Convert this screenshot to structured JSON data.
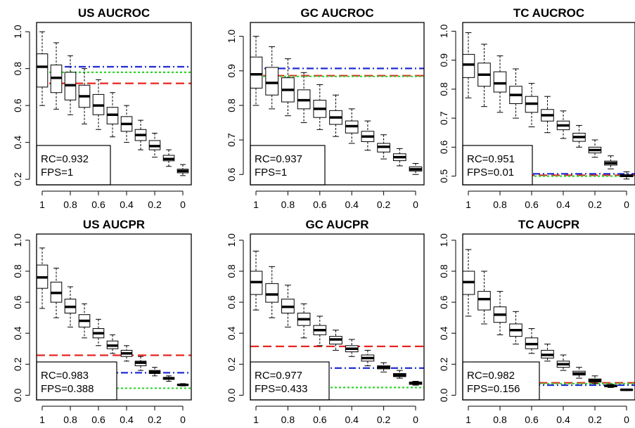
{
  "figure": {
    "description_colors": {
      "ref_red": "#e8251f",
      "ref_blue": "#1f2bd6",
      "ref_green": "#2bd62b"
    }
  },
  "chart_data": [
    {
      "type": "box",
      "title": "US AUCROC",
      "x_ticks": [
        "1",
        "0.8",
        "0.6",
        "0.4",
        "0.2",
        "0"
      ],
      "x_levels": [
        1,
        0.9,
        0.8,
        0.7,
        0.6,
        0.5,
        0.4,
        0.3,
        0.2,
        0.1,
        0
      ],
      "ylim": [
        0.17,
        1.05
      ],
      "y_ticks": [
        0.2,
        0.4,
        0.6,
        0.8,
        1.0
      ],
      "y_tick_labels": [
        "0.2",
        "0.4",
        "0.6",
        "0.8",
        "1.0"
      ],
      "boxes": [
        {
          "wlo": 0.6,
          "q1": 0.7,
          "med": 0.81,
          "q3": 0.88,
          "whi": 1.0
        },
        {
          "wlo": 0.58,
          "q1": 0.67,
          "med": 0.75,
          "q3": 0.82,
          "whi": 0.94
        },
        {
          "wlo": 0.55,
          "q1": 0.63,
          "med": 0.71,
          "q3": 0.78,
          "whi": 0.87
        },
        {
          "wlo": 0.5,
          "q1": 0.59,
          "med": 0.65,
          "q3": 0.71,
          "whi": 0.8
        },
        {
          "wlo": 0.47,
          "q1": 0.55,
          "med": 0.6,
          "q3": 0.66,
          "whi": 0.74
        },
        {
          "wlo": 0.43,
          "q1": 0.5,
          "med": 0.55,
          "q3": 0.59,
          "whi": 0.67
        },
        {
          "wlo": 0.4,
          "q1": 0.46,
          "med": 0.5,
          "q3": 0.54,
          "whi": 0.6
        },
        {
          "wlo": 0.36,
          "q1": 0.41,
          "med": 0.44,
          "q3": 0.47,
          "whi": 0.52
        },
        {
          "wlo": 0.32,
          "q1": 0.36,
          "med": 0.38,
          "q3": 0.41,
          "whi": 0.45
        },
        {
          "wlo": 0.27,
          "q1": 0.3,
          "med": 0.31,
          "q3": 0.33,
          "whi": 0.36
        },
        {
          "wlo": 0.22,
          "q1": 0.235,
          "med": 0.245,
          "q3": 0.255,
          "whi": 0.28
        }
      ],
      "ref_lines": [
        {
          "color": "red",
          "style": "dashed",
          "y": 0.72
        },
        {
          "color": "blue",
          "style": "dashdot",
          "y": 0.81
        },
        {
          "color": "green",
          "style": "dotted",
          "y": 0.78
        }
      ],
      "annotation": [
        "RC=0.932",
        "FPS=1"
      ]
    },
    {
      "type": "box",
      "title": "GC AUCROC",
      "x_ticks": [
        "1",
        "0.8",
        "0.6",
        "0.4",
        "0.2",
        "0"
      ],
      "x_levels": [
        1,
        0.9,
        0.8,
        0.7,
        0.6,
        0.5,
        0.4,
        0.3,
        0.2,
        0.1,
        0
      ],
      "ylim": [
        0.57,
        1.04
      ],
      "y_ticks": [
        0.6,
        0.7,
        0.8,
        0.9,
        1.0
      ],
      "y_tick_labels": [
        "0.6",
        "0.7",
        "0.8",
        "0.9",
        "1.0"
      ],
      "boxes": [
        {
          "wlo": 0.8,
          "q1": 0.85,
          "med": 0.89,
          "q3": 0.94,
          "whi": 1.0
        },
        {
          "wlo": 0.79,
          "q1": 0.83,
          "med": 0.865,
          "q3": 0.91,
          "whi": 0.97
        },
        {
          "wlo": 0.77,
          "q1": 0.81,
          "med": 0.845,
          "q3": 0.88,
          "whi": 0.935
        },
        {
          "wlo": 0.75,
          "q1": 0.79,
          "med": 0.815,
          "q3": 0.845,
          "whi": 0.895
        },
        {
          "wlo": 0.73,
          "q1": 0.765,
          "med": 0.79,
          "q3": 0.815,
          "whi": 0.86
        },
        {
          "wlo": 0.71,
          "q1": 0.745,
          "med": 0.765,
          "q3": 0.785,
          "whi": 0.83
        },
        {
          "wlo": 0.69,
          "q1": 0.72,
          "med": 0.74,
          "q3": 0.755,
          "whi": 0.79
        },
        {
          "wlo": 0.67,
          "q1": 0.695,
          "med": 0.71,
          "q3": 0.725,
          "whi": 0.755
        },
        {
          "wlo": 0.645,
          "q1": 0.665,
          "med": 0.68,
          "q3": 0.69,
          "whi": 0.715
        },
        {
          "wlo": 0.625,
          "q1": 0.64,
          "med": 0.65,
          "q3": 0.66,
          "whi": 0.675
        },
        {
          "wlo": 0.6,
          "q1": 0.61,
          "med": 0.615,
          "q3": 0.622,
          "whi": 0.632
        }
      ],
      "ref_lines": [
        {
          "color": "red",
          "style": "dashed",
          "y": 0.886
        },
        {
          "color": "blue",
          "style": "dashdot",
          "y": 0.907
        },
        {
          "color": "green",
          "style": "dotted",
          "y": 0.884
        }
      ],
      "annotation": [
        "RC=0.937",
        "FPS=1"
      ]
    },
    {
      "type": "box",
      "title": "TC AUCROC",
      "x_ticks": [
        "1",
        "0.8",
        "0.6",
        "0.4",
        "0.2",
        "0"
      ],
      "x_levels": [
        1,
        0.9,
        0.8,
        0.7,
        0.6,
        0.5,
        0.4,
        0.3,
        0.2,
        0.1,
        0
      ],
      "ylim": [
        0.47,
        1.03
      ],
      "y_ticks": [
        0.5,
        0.6,
        0.7,
        0.8,
        0.9,
        1.0
      ],
      "y_tick_labels": [
        "0.5",
        "0.6",
        "0.7",
        "0.8",
        "0.9",
        "1.0"
      ],
      "boxes": [
        {
          "wlo": 0.77,
          "q1": 0.84,
          "med": 0.885,
          "q3": 0.92,
          "whi": 0.995
        },
        {
          "wlo": 0.74,
          "q1": 0.81,
          "med": 0.85,
          "q3": 0.89,
          "whi": 0.955
        },
        {
          "wlo": 0.72,
          "q1": 0.79,
          "med": 0.82,
          "q3": 0.86,
          "whi": 0.915
        },
        {
          "wlo": 0.7,
          "q1": 0.75,
          "med": 0.78,
          "q3": 0.81,
          "whi": 0.87
        },
        {
          "wlo": 0.67,
          "q1": 0.72,
          "med": 0.75,
          "q3": 0.775,
          "whi": 0.82
        },
        {
          "wlo": 0.65,
          "q1": 0.69,
          "med": 0.71,
          "q3": 0.73,
          "whi": 0.775
        },
        {
          "wlo": 0.63,
          "q1": 0.66,
          "med": 0.675,
          "q3": 0.69,
          "whi": 0.725
        },
        {
          "wlo": 0.6,
          "q1": 0.62,
          "med": 0.635,
          "q3": 0.648,
          "whi": 0.675
        },
        {
          "wlo": 0.565,
          "q1": 0.58,
          "med": 0.59,
          "q3": 0.6,
          "whi": 0.625
        },
        {
          "wlo": 0.525,
          "q1": 0.538,
          "med": 0.545,
          "q3": 0.552,
          "whi": 0.57
        },
        {
          "wlo": 0.49,
          "q1": 0.498,
          "med": 0.502,
          "q3": 0.505,
          "whi": 0.515
        }
      ],
      "ref_lines": [
        {
          "color": "red",
          "style": "dashed",
          "y": 0.503
        },
        {
          "color": "blue",
          "style": "dashdot",
          "y": 0.508
        },
        {
          "color": "green",
          "style": "dotted",
          "y": 0.5
        }
      ],
      "annotation": [
        "RC=0.951",
        "FPS=0.01"
      ]
    },
    {
      "type": "box",
      "title": "US AUCPR",
      "x_ticks": [
        "1",
        "0.8",
        "0.6",
        "0.4",
        "0.2",
        "0"
      ],
      "x_levels": [
        1,
        0.9,
        0.8,
        0.7,
        0.6,
        0.5,
        0.4,
        0.3,
        0.2,
        0.1,
        0
      ],
      "ylim": [
        -0.03,
        1.04
      ],
      "y_ticks": [
        0.0,
        0.2,
        0.4,
        0.6,
        0.8,
        1.0
      ],
      "y_tick_labels": [
        "0.0",
        "0.2",
        "0.4",
        "0.6",
        "0.8",
        "1.0"
      ],
      "boxes": [
        {
          "wlo": 0.56,
          "q1": 0.69,
          "med": 0.76,
          "q3": 0.84,
          "whi": 0.95
        },
        {
          "wlo": 0.5,
          "q1": 0.6,
          "med": 0.66,
          "q3": 0.73,
          "whi": 0.82
        },
        {
          "wlo": 0.44,
          "q1": 0.53,
          "med": 0.57,
          "q3": 0.62,
          "whi": 0.7
        },
        {
          "wlo": 0.37,
          "q1": 0.44,
          "med": 0.48,
          "q3": 0.52,
          "whi": 0.59
        },
        {
          "wlo": 0.32,
          "q1": 0.37,
          "med": 0.4,
          "q3": 0.43,
          "whi": 0.49
        },
        {
          "wlo": 0.27,
          "q1": 0.3,
          "med": 0.32,
          "q3": 0.35,
          "whi": 0.39
        },
        {
          "wlo": 0.22,
          "q1": 0.25,
          "med": 0.27,
          "q3": 0.29,
          "whi": 0.32
        },
        {
          "wlo": 0.16,
          "q1": 0.19,
          "med": 0.21,
          "q3": 0.22,
          "whi": 0.25
        },
        {
          "wlo": 0.125,
          "q1": 0.14,
          "med": 0.15,
          "q3": 0.16,
          "whi": 0.18
        },
        {
          "wlo": 0.09,
          "q1": 0.102,
          "med": 0.11,
          "q3": 0.115,
          "whi": 0.125
        },
        {
          "wlo": 0.06,
          "q1": 0.064,
          "med": 0.067,
          "q3": 0.07,
          "whi": 0.075
        }
      ],
      "ref_lines": [
        {
          "color": "red",
          "style": "dashed",
          "y": 0.258
        },
        {
          "color": "blue",
          "style": "dashdot",
          "y": 0.145
        },
        {
          "color": "green",
          "style": "dotted",
          "y": 0.045
        }
      ],
      "annotation": [
        "RC=0.983",
        "FPS=0.388"
      ]
    },
    {
      "type": "box",
      "title": "GC AUCPR",
      "x_ticks": [
        "1",
        "0.8",
        "0.6",
        "0.4",
        "0.2",
        "0"
      ],
      "x_levels": [
        1,
        0.9,
        0.8,
        0.7,
        0.6,
        0.5,
        0.4,
        0.3,
        0.2,
        0.1,
        0
      ],
      "ylim": [
        -0.03,
        1.04
      ],
      "y_ticks": [
        0.0,
        0.2,
        0.4,
        0.6,
        0.8,
        1.0
      ],
      "y_tick_labels": [
        "0.0",
        "0.2",
        "0.4",
        "0.6",
        "0.8",
        "1.0"
      ],
      "boxes": [
        {
          "wlo": 0.55,
          "q1": 0.65,
          "med": 0.73,
          "q3": 0.8,
          "whi": 0.93
        },
        {
          "wlo": 0.5,
          "q1": 0.6,
          "med": 0.65,
          "q3": 0.72,
          "whi": 0.83
        },
        {
          "wlo": 0.44,
          "q1": 0.53,
          "med": 0.57,
          "q3": 0.62,
          "whi": 0.71
        },
        {
          "wlo": 0.37,
          "q1": 0.45,
          "med": 0.49,
          "q3": 0.53,
          "whi": 0.59
        },
        {
          "wlo": 0.32,
          "q1": 0.39,
          "med": 0.42,
          "q3": 0.45,
          "whi": 0.51
        },
        {
          "wlo": 0.29,
          "q1": 0.33,
          "med": 0.36,
          "q3": 0.38,
          "whi": 0.42
        },
        {
          "wlo": 0.25,
          "q1": 0.28,
          "med": 0.3,
          "q3": 0.32,
          "whi": 0.36
        },
        {
          "wlo": 0.19,
          "q1": 0.22,
          "med": 0.24,
          "q3": 0.26,
          "whi": 0.29
        },
        {
          "wlo": 0.15,
          "q1": 0.17,
          "med": 0.18,
          "q3": 0.19,
          "whi": 0.21
        },
        {
          "wlo": 0.11,
          "q1": 0.12,
          "med": 0.13,
          "q3": 0.14,
          "whi": 0.16
        },
        {
          "wlo": 0.065,
          "q1": 0.07,
          "med": 0.08,
          "q3": 0.085,
          "whi": 0.09
        }
      ],
      "ref_lines": [
        {
          "color": "red",
          "style": "dashed",
          "y": 0.315
        },
        {
          "color": "blue",
          "style": "dashdot",
          "y": 0.175
        },
        {
          "color": "green",
          "style": "dotted",
          "y": 0.05
        }
      ],
      "annotation": [
        "RC=0.977",
        "FPS=0.433"
      ]
    },
    {
      "type": "box",
      "title": "TC AUCPR",
      "x_ticks": [
        "1",
        "0.8",
        "0.6",
        "0.4",
        "0.2",
        "0"
      ],
      "x_levels": [
        1,
        0.9,
        0.8,
        0.7,
        0.6,
        0.5,
        0.4,
        0.3,
        0.2,
        0.1,
        0
      ],
      "ylim": [
        -0.03,
        1.04
      ],
      "y_ticks": [
        0.0,
        0.2,
        0.4,
        0.6,
        0.8,
        1.0
      ],
      "y_tick_labels": [
        "0.0",
        "0.2",
        "0.4",
        "0.6",
        "0.8",
        "1.0"
      ],
      "boxes": [
        {
          "wlo": 0.51,
          "q1": 0.65,
          "med": 0.73,
          "q3": 0.8,
          "whi": 0.94
        },
        {
          "wlo": 0.46,
          "q1": 0.55,
          "med": 0.62,
          "q3": 0.67,
          "whi": 0.8
        },
        {
          "wlo": 0.39,
          "q1": 0.47,
          "med": 0.52,
          "q3": 0.57,
          "whi": 0.67
        },
        {
          "wlo": 0.33,
          "q1": 0.38,
          "med": 0.42,
          "q3": 0.46,
          "whi": 0.54
        },
        {
          "wlo": 0.27,
          "q1": 0.3,
          "med": 0.33,
          "q3": 0.37,
          "whi": 0.43
        },
        {
          "wlo": 0.22,
          "q1": 0.24,
          "med": 0.26,
          "q3": 0.29,
          "whi": 0.33
        },
        {
          "wlo": 0.16,
          "q1": 0.18,
          "med": 0.2,
          "q3": 0.22,
          "whi": 0.26
        },
        {
          "wlo": 0.11,
          "q1": 0.13,
          "med": 0.14,
          "q3": 0.155,
          "whi": 0.18
        },
        {
          "wlo": 0.075,
          "q1": 0.085,
          "med": 0.095,
          "q3": 0.105,
          "whi": 0.125
        },
        {
          "wlo": 0.05,
          "q1": 0.055,
          "med": 0.06,
          "q3": 0.065,
          "whi": 0.07
        },
        {
          "wlo": 0.03,
          "q1": 0.033,
          "med": 0.035,
          "q3": 0.037,
          "whi": 0.04
        }
      ],
      "ref_lines": [
        {
          "color": "red",
          "style": "dashed",
          "y": 0.08
        },
        {
          "color": "blue",
          "style": "dashdot",
          "y": 0.065
        },
        {
          "color": "green",
          "style": "dotted",
          "y": 0.075
        }
      ],
      "annotation": [
        "RC=0.982",
        "FPS=0.156"
      ]
    }
  ]
}
